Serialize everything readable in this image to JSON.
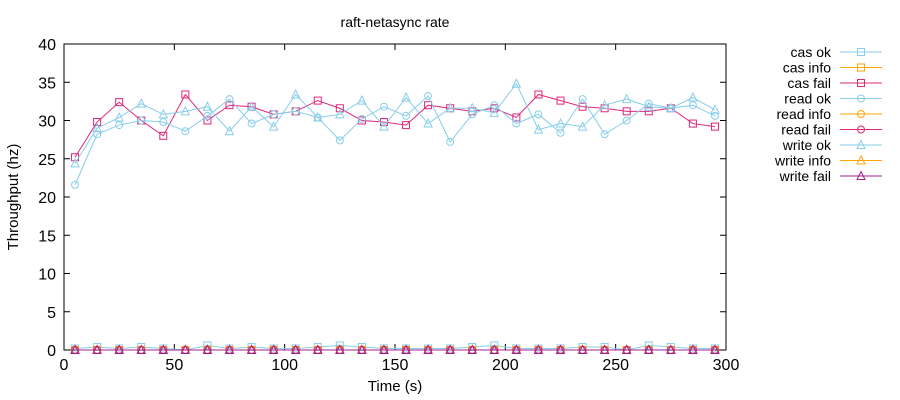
{
  "chart_data": {
    "type": "line",
    "title": "raft-netasync rate",
    "xlabel": "Time (s)",
    "ylabel": "Throughput (hz)",
    "xlim": [
      0,
      300
    ],
    "ylim": [
      0,
      40
    ],
    "xticks": [
      0,
      50,
      100,
      150,
      200,
      250,
      300
    ],
    "yticks": [
      0,
      5,
      10,
      15,
      20,
      25,
      30,
      35,
      40
    ],
    "grid": false,
    "legend_position": "right",
    "x": [
      5,
      15,
      25,
      35,
      45,
      55,
      65,
      75,
      85,
      95,
      105,
      115,
      125,
      135,
      145,
      155,
      165,
      175,
      185,
      195,
      205,
      215,
      225,
      235,
      245,
      255,
      265,
      275,
      285,
      295
    ],
    "series": [
      {
        "name": "cas ok",
        "color": "#87ceeb",
        "marker": "square",
        "values": [
          0.2,
          0.4,
          0.2,
          0.4,
          0.2,
          0.0,
          0.6,
          0.2,
          0.4,
          0.2,
          0.2,
          0.4,
          0.6,
          0.4,
          0.2,
          0.2,
          0.2,
          0.2,
          0.4,
          0.6,
          0.2,
          0.2,
          0.2,
          0.4,
          0.4,
          0.0,
          0.6,
          0.4,
          0.2,
          0.2
        ]
      },
      {
        "name": "cas info",
        "color": "#ffa500",
        "marker": "square",
        "values": [
          0,
          0,
          0,
          0,
          0,
          0,
          0,
          0,
          0,
          0,
          0,
          0,
          0,
          0,
          0,
          0,
          0,
          0,
          0,
          0,
          0,
          0,
          0,
          0,
          0,
          0,
          0,
          0,
          0,
          0
        ]
      },
      {
        "name": "cas fail",
        "color": "#e0287a",
        "marker": "square",
        "values": [
          25.2,
          29.8,
          32.4,
          30.0,
          28.0,
          33.4,
          30.0,
          32.0,
          31.8,
          30.8,
          31.2,
          32.6,
          31.6,
          30.0,
          29.8,
          29.4,
          32.0,
          31.6,
          31.2,
          31.6,
          30.4,
          33.4,
          32.6,
          31.8,
          31.6,
          31.2,
          31.2,
          31.6,
          29.6,
          29.2
        ]
      },
      {
        "name": "read ok",
        "color": "#87ceeb",
        "marker": "circle",
        "values": [
          21.6,
          28.2,
          29.4,
          30.0,
          29.8,
          28.6,
          30.6,
          32.8,
          29.6,
          30.8,
          31.2,
          30.4,
          27.4,
          30.2,
          31.8,
          30.6,
          33.2,
          27.2,
          30.8,
          32.0,
          29.6,
          30.8,
          28.4,
          32.8,
          28.2,
          30.0,
          32.2,
          31.6,
          32.0,
          30.6
        ]
      },
      {
        "name": "read info",
        "color": "#ffa500",
        "marker": "circle",
        "values": [
          0,
          0,
          0,
          0,
          0,
          0,
          0,
          0,
          0,
          0,
          0,
          0,
          0,
          0,
          0,
          0,
          0,
          0,
          0,
          0,
          0,
          0,
          0,
          0,
          0,
          0,
          0,
          0,
          0,
          0
        ]
      },
      {
        "name": "read fail",
        "color": "#e0287a",
        "marker": "circle",
        "values": [
          0,
          0,
          0,
          0,
          0,
          0,
          0,
          0,
          0,
          0,
          0,
          0,
          0,
          0,
          0,
          0,
          0,
          0,
          0,
          0,
          0,
          0,
          0,
          0,
          0,
          0,
          0,
          0,
          0,
          0
        ]
      },
      {
        "name": "write ok",
        "color": "#87ceeb",
        "marker": "triangle",
        "values": [
          24.4,
          29.0,
          30.4,
          32.2,
          30.8,
          31.2,
          31.8,
          28.6,
          31.8,
          29.2,
          33.4,
          30.4,
          30.8,
          32.6,
          29.2,
          33.0,
          29.6,
          31.6,
          31.6,
          31.0,
          34.8,
          28.8,
          29.6,
          29.2,
          32.0,
          32.8,
          31.8,
          31.6,
          33.0,
          31.4
        ]
      },
      {
        "name": "write info",
        "color": "#ffa500",
        "marker": "triangle",
        "values": [
          0,
          0,
          0,
          0,
          0,
          0,
          0,
          0,
          0,
          0,
          0,
          0,
          0,
          0,
          0,
          0,
          0,
          0,
          0,
          0,
          0,
          0,
          0,
          0,
          0,
          0,
          0,
          0,
          0,
          0
        ]
      },
      {
        "name": "write fail",
        "color": "#a0208c",
        "marker": "triangle",
        "values": [
          0,
          0,
          0,
          0,
          0,
          0,
          0,
          0,
          0,
          0,
          0,
          0,
          0,
          0,
          0,
          0,
          0,
          0,
          0,
          0,
          0,
          0,
          0,
          0,
          0,
          0,
          0,
          0,
          0,
          0
        ]
      }
    ]
  }
}
